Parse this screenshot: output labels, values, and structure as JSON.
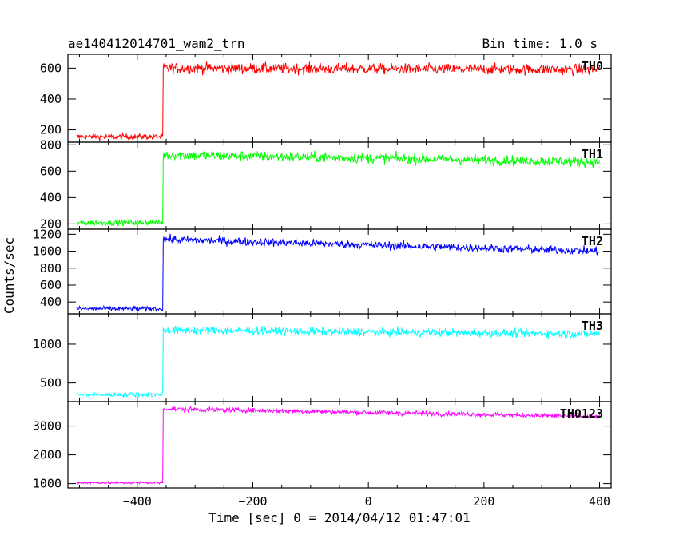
{
  "header": {
    "title": "ae140412014701_wam2_trn",
    "bin_time": "Bin time: 1.0 s"
  },
  "chart_data": {
    "type": "line",
    "xlabel": "Time [sec] 0 = 2014/04/12 01:47:01",
    "ylabel": "Counts/sec",
    "xlim": [
      -520,
      420
    ],
    "x_ticks": [
      -400,
      -200,
      0,
      200,
      400
    ],
    "x_tick_labels": [
      "−400",
      "−200",
      "0",
      "200",
      "400"
    ],
    "step_time": -355,
    "panels": [
      {
        "name": "TH0",
        "color": "#ff0000",
        "ylim": [
          120,
          690
        ],
        "y_ticks": [
          200,
          400,
          600
        ],
        "y_tick_labels": [
          "200",
          "400",
          "600"
        ],
        "pre_level": 155,
        "post_level_start": 600,
        "post_level_end": 590,
        "noise": 25
      },
      {
        "name": "TH1",
        "color": "#00ff00",
        "ylim": [
          160,
          820
        ],
        "y_ticks": [
          200,
          400,
          600,
          800
        ],
        "y_tick_labels": [
          "200",
          "400",
          "600",
          "800"
        ],
        "pre_level": 210,
        "post_level_start": 725,
        "post_level_end": 670,
        "noise": 28
      },
      {
        "name": "TH2",
        "color": "#0000ff",
        "ylim": [
          260,
          1260
        ],
        "y_ticks": [
          400,
          600,
          800,
          1000,
          1200
        ],
        "y_tick_labels": [
          "400",
          "600",
          "800",
          "1000",
          "1200"
        ],
        "pre_level": 320,
        "post_level_start": 1140,
        "post_level_end": 1000,
        "noise": 35
      },
      {
        "name": "TH3",
        "color": "#00ffff",
        "ylim": [
          260,
          1390
        ],
        "y_ticks": [
          500,
          1000
        ],
        "y_tick_labels": [
          "500",
          "1000"
        ],
        "pre_level": 350,
        "post_level_start": 1180,
        "post_level_end": 1130,
        "noise": 38
      },
      {
        "name": "TH0123",
        "color": "#ff00ff",
        "ylim": [
          850,
          3850
        ],
        "y_ticks": [
          1000,
          2000,
          3000
        ],
        "y_tick_labels": [
          "1000",
          "2000",
          "3000"
        ],
        "pre_level": 1030,
        "post_level_start": 3600,
        "post_level_end": 3330,
        "noise": 60
      }
    ]
  }
}
